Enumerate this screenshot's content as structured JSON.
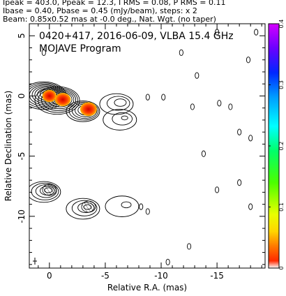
{
  "header": {
    "line1": "Ipeak = 403.0, Ppeak = 12.3, I RMS = 0.08, P RMS = 0.11",
    "line2": "Ibase = 0.40, Pbase = 0.45 (mJy/beam), steps: x 2",
    "line3": "Beam: 0.85x0.52 mas at -0.0 deg., Nat. Wgt. (no taper)"
  },
  "panel": {
    "source_line": "0420+417, 2016-06-09, VLBA 15.4 GHz",
    "program_line": "MOJAVE Program"
  },
  "chart_data": {
    "type": "heatmap",
    "description_of_axes": "RA offset decreases to the right",
    "xlabel": "Relative R.A. (mas)",
    "ylabel": "Relative Declination (mas)",
    "xlim": [
      1.8,
      -19.3
    ],
    "ylim": [
      -14.3,
      6.0
    ],
    "xticks": [
      0,
      -5,
      -10,
      -15
    ],
    "xtick_labels": [
      "0",
      "-5",
      "-10",
      "-15"
    ],
    "yticks": [
      5,
      0,
      -5,
      -10
    ],
    "ytick_labels": [
      "5",
      "0",
      "-5",
      "-10"
    ],
    "colorbar": {
      "min": 0,
      "max": 0.4,
      "ticks": [
        0,
        0.1,
        0.2,
        0.3,
        0.4
      ],
      "tick_labels": [
        "0",
        "0.1",
        "0.2",
        "0.3",
        "0.4"
      ]
    },
    "contour_levels_mJy_per_beam": [
      0.4,
      0.8,
      1.6,
      3.2,
      6.4,
      12.8,
      25.6,
      51.2,
      102.4,
      204.8,
      409.6
    ],
    "total_intensity_components": [
      {
        "ra": 0.0,
        "dec": 0.2,
        "peak": 403.0
      },
      {
        "ra": -1.2,
        "dec": -0.2,
        "peak": 110
      },
      {
        "ra": -3.5,
        "dec": -1.1,
        "peak": 60
      },
      {
        "ra": -6.5,
        "dec": -0.5,
        "peak": 3
      },
      {
        "ra": -6.8,
        "dec": -1.8,
        "peak": 2
      }
    ],
    "polarized_emission_patches": [
      {
        "ra": 0.0,
        "dec": 0.0,
        "peak": 0.02
      },
      {
        "ra": -1.2,
        "dec": -0.3,
        "peak": 0.04
      },
      {
        "ra": -3.5,
        "dec": -1.1,
        "peak": 0.05
      }
    ],
    "lower_panel_components": [
      {
        "ra": 0.0,
        "dec": -7.8,
        "peak": 12
      },
      {
        "ra": -3.5,
        "dec": -9.2,
        "peak": 5
      },
      {
        "ra": -7.0,
        "dec": -9.0,
        "peak": 1.0
      }
    ],
    "noise_islands": [
      {
        "ra": -8.8,
        "dec": -0.1
      },
      {
        "ra": -10.2,
        "dec": -0.1
      },
      {
        "ra": -16.2,
        "dec": -0.9
      },
      {
        "ra": -15.2,
        "dec": -0.6
      },
      {
        "ra": -17.0,
        "dec": -3.0
      },
      {
        "ra": -18.0,
        "dec": -3.5
      },
      {
        "ra": -13.2,
        "dec": 1.7
      },
      {
        "ra": -13.8,
        "dec": -4.8
      },
      {
        "ra": -15.0,
        "dec": -7.8
      },
      {
        "ra": -17.0,
        "dec": -7.2
      },
      {
        "ra": -11.8,
        "dec": 3.6
      },
      {
        "ra": -17.8,
        "dec": 3.0
      },
      {
        "ra": -18.5,
        "dec": 5.3
      },
      {
        "ra": -18.0,
        "dec": -9.2
      },
      {
        "ra": -12.5,
        "dec": -12.5
      },
      {
        "ra": -8.8,
        "dec": -9.6
      },
      {
        "ra": -8.2,
        "dec": -9.2
      },
      {
        "ra": -10.6,
        "dec": -13.8
      },
      {
        "ra": -12.8,
        "dec": -0.9
      },
      {
        "ra": -15.0,
        "dec": 5.3
      },
      {
        "ra": 0.5,
        "dec": 3.6
      }
    ]
  }
}
